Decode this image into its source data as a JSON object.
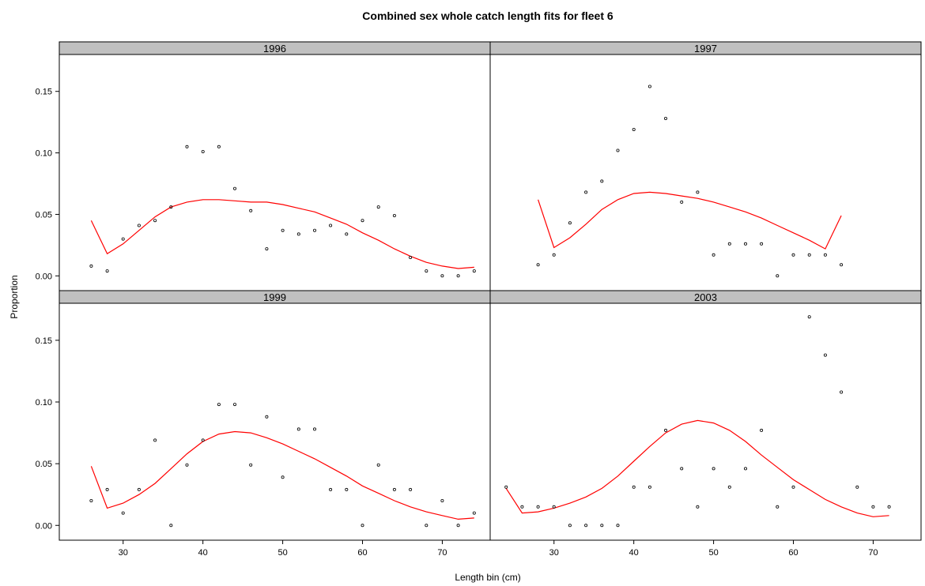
{
  "chart_data": {
    "type": "scatter",
    "title": "Combined sex whole catch length fits for fleet 6",
    "xlabel": "Length bin (cm)",
    "ylabel": "Proportion",
    "xlim": [
      22,
      76
    ],
    "ylim": [
      -0.012,
      0.18
    ],
    "x_ticks": [
      30,
      40,
      50,
      60,
      70
    ],
    "y_ticks": [
      0.0,
      0.05,
      0.1,
      0.15
    ],
    "y_tick_labels": [
      "0.00",
      "0.05",
      "0.10",
      "0.15"
    ],
    "grid": false,
    "series_colors": {
      "observed": "#000000",
      "expected": "#ff0000"
    },
    "panels": [
      {
        "label": "1996",
        "observed": {
          "x": [
            26,
            28,
            30,
            32,
            34,
            36,
            38,
            40,
            42,
            44,
            46,
            48,
            50,
            52,
            54,
            56,
            58,
            60,
            62,
            64,
            66,
            68,
            70,
            72,
            74
          ],
          "y": [
            0.008,
            0.004,
            0.03,
            0.041,
            0.045,
            0.056,
            0.105,
            0.101,
            0.105,
            0.071,
            0.053,
            0.022,
            0.037,
            0.034,
            0.037,
            0.041,
            0.034,
            0.045,
            0.056,
            0.049,
            0.015,
            0.004,
            0.0,
            0.0,
            0.004
          ]
        },
        "expected": {
          "x": [
            26,
            28,
            30,
            32,
            34,
            36,
            38,
            40,
            42,
            44,
            46,
            48,
            50,
            52,
            54,
            56,
            58,
            60,
            62,
            64,
            66,
            68,
            70,
            72,
            74
          ],
          "y": [
            0.045,
            0.018,
            0.026,
            0.037,
            0.048,
            0.056,
            0.06,
            0.062,
            0.062,
            0.061,
            0.06,
            0.06,
            0.058,
            0.055,
            0.052,
            0.047,
            0.042,
            0.035,
            0.029,
            0.022,
            0.016,
            0.011,
            0.008,
            0.006,
            0.007
          ]
        }
      },
      {
        "label": "1997",
        "observed": {
          "x": [
            28,
            30,
            32,
            34,
            36,
            38,
            40,
            42,
            44,
            46,
            48,
            50,
            52,
            54,
            56,
            58,
            60,
            62,
            64,
            66
          ],
          "y": [
            0.009,
            0.017,
            0.043,
            0.068,
            0.077,
            0.102,
            0.119,
            0.154,
            0.128,
            0.06,
            0.068,
            0.017,
            0.026,
            0.026,
            0.026,
            0.0,
            0.017,
            0.017,
            0.017,
            0.009
          ]
        },
        "expected": {
          "x": [
            28,
            30,
            32,
            34,
            36,
            38,
            40,
            42,
            44,
            46,
            48,
            50,
            52,
            54,
            56,
            58,
            60,
            62,
            64,
            66
          ],
          "y": [
            0.062,
            0.023,
            0.031,
            0.042,
            0.054,
            0.062,
            0.067,
            0.068,
            0.067,
            0.065,
            0.063,
            0.06,
            0.056,
            0.052,
            0.047,
            0.041,
            0.035,
            0.029,
            0.022,
            0.049
          ]
        }
      },
      {
        "label": "1999",
        "observed": {
          "x": [
            26,
            28,
            30,
            32,
            34,
            36,
            38,
            40,
            42,
            44,
            46,
            48,
            50,
            52,
            54,
            56,
            58,
            60,
            62,
            64,
            66,
            68,
            70,
            72,
            74
          ],
          "y": [
            0.02,
            0.029,
            0.01,
            0.029,
            0.069,
            0.0,
            0.049,
            0.069,
            0.098,
            0.098,
            0.049,
            0.088,
            0.039,
            0.078,
            0.078,
            0.029,
            0.029,
            0.0,
            0.049,
            0.029,
            0.029,
            0.0,
            0.02,
            0.0,
            0.01
          ]
        },
        "expected": {
          "x": [
            26,
            28,
            30,
            32,
            34,
            36,
            38,
            40,
            42,
            44,
            46,
            48,
            50,
            52,
            54,
            56,
            58,
            60,
            62,
            64,
            66,
            68,
            70,
            72,
            74
          ],
          "y": [
            0.048,
            0.014,
            0.018,
            0.025,
            0.034,
            0.046,
            0.058,
            0.068,
            0.074,
            0.076,
            0.075,
            0.071,
            0.066,
            0.06,
            0.054,
            0.047,
            0.04,
            0.032,
            0.026,
            0.02,
            0.015,
            0.011,
            0.008,
            0.005,
            0.006
          ]
        }
      },
      {
        "label": "2003",
        "observed": {
          "x": [
            24,
            26,
            28,
            30,
            32,
            34,
            36,
            38,
            40,
            42,
            44,
            46,
            48,
            50,
            52,
            54,
            56,
            58,
            60,
            62,
            64,
            66,
            68,
            70,
            72
          ],
          "y": [
            0.031,
            0.015,
            0.015,
            0.015,
            0.0,
            0.0,
            0.0,
            0.0,
            0.031,
            0.031,
            0.077,
            0.046,
            0.015,
            0.046,
            0.031,
            0.046,
            0.077,
            0.015,
            0.031,
            0.169,
            0.138,
            0.108,
            0.031,
            0.015,
            0.015
          ]
        },
        "expected": {
          "x": [
            24,
            26,
            28,
            30,
            32,
            34,
            36,
            38,
            40,
            42,
            44,
            46,
            48,
            50,
            52,
            54,
            56,
            58,
            60,
            62,
            64,
            66,
            68,
            70,
            72
          ],
          "y": [
            0.03,
            0.01,
            0.011,
            0.014,
            0.018,
            0.023,
            0.03,
            0.04,
            0.052,
            0.064,
            0.075,
            0.082,
            0.085,
            0.083,
            0.077,
            0.068,
            0.057,
            0.047,
            0.037,
            0.029,
            0.021,
            0.015,
            0.01,
            0.007,
            0.008
          ]
        }
      }
    ]
  }
}
